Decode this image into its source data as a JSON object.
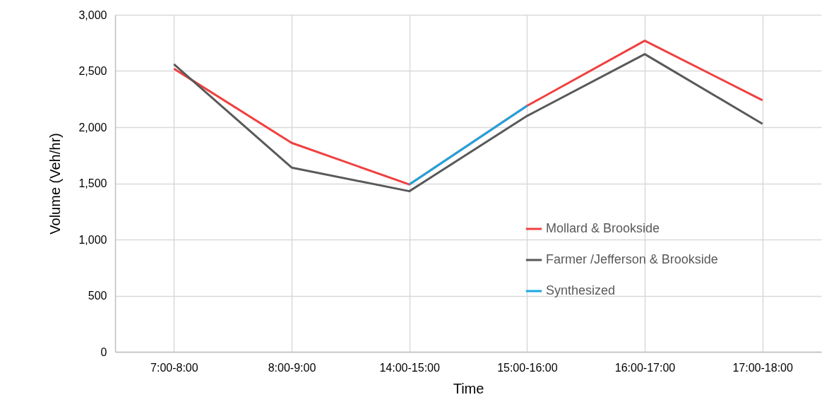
{
  "chart_data": {
    "type": "line",
    "xlabel": "Time",
    "ylabel": "Volume (Veh/hr)",
    "categories": [
      "7:00-8:00",
      "8:00-9:00",
      "14:00-15:00",
      "15:00-16:00",
      "16:00-17:00",
      "17:00-18:00"
    ],
    "series": [
      {
        "name": "Mollard & Brookside",
        "color": "#f04040",
        "values": [
          2520,
          1860,
          1490,
          2190,
          2770,
          2240
        ]
      },
      {
        "name": "Farmer /Jefferson  & Brookside",
        "color": "#595959",
        "values": [
          2560,
          1640,
          1430,
          2100,
          2650,
          2030
        ]
      },
      {
        "name": "Synthesized",
        "color": "#1aa7e0",
        "values": [
          null,
          null,
          1490,
          2190,
          null,
          null
        ]
      }
    ],
    "ylim": [
      0,
      3000
    ],
    "yticks": [
      0,
      500,
      {
        "value": 1000,
        "label": "1,000"
      },
      {
        "value": 1500,
        "label": "1,500"
      },
      {
        "value": 2000,
        "label": "2,000"
      },
      {
        "value": 2500,
        "label": "2,500"
      },
      {
        "value": 3000,
        "label": "3,000"
      }
    ],
    "grid": true,
    "legend": "right",
    "marker": "none",
    "line_style": "solid"
  }
}
